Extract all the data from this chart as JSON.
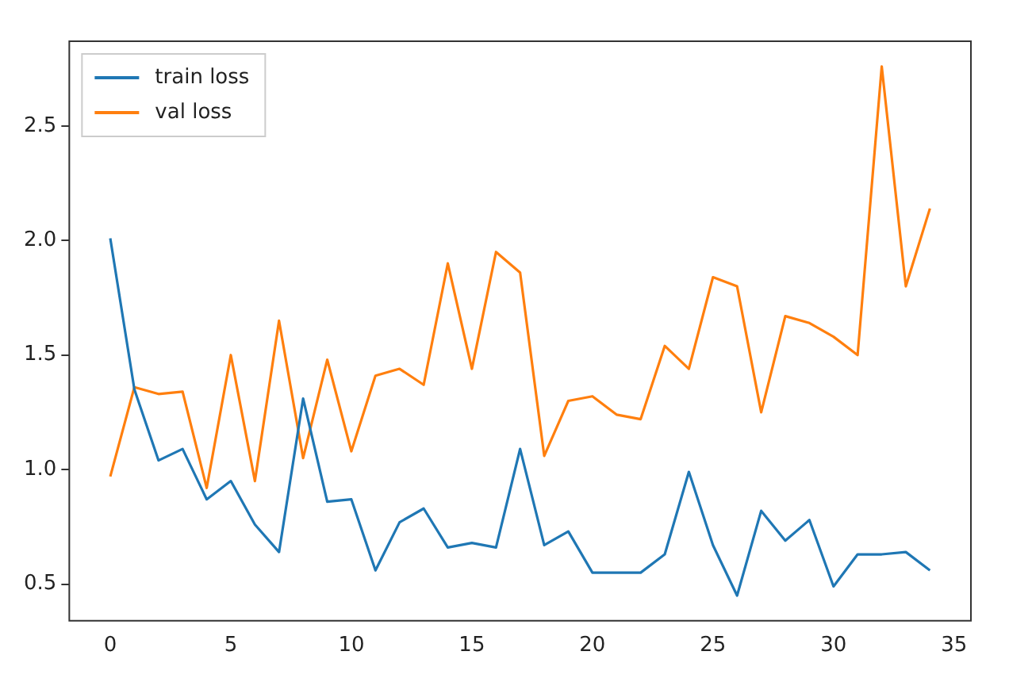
{
  "chart_data": {
    "type": "line",
    "x": [
      0,
      1,
      2,
      3,
      4,
      5,
      6,
      7,
      8,
      9,
      10,
      11,
      12,
      13,
      14,
      15,
      16,
      17,
      18,
      19,
      20,
      21,
      22,
      23,
      24,
      25,
      26,
      27,
      28,
      29,
      30,
      31,
      32,
      33,
      34
    ],
    "series": [
      {
        "name": "train loss",
        "color": "#1f77b4",
        "values": [
          2.01,
          1.35,
          1.04,
          1.09,
          0.87,
          0.95,
          0.76,
          0.64,
          1.31,
          0.86,
          0.87,
          0.56,
          0.77,
          0.83,
          0.66,
          0.68,
          0.66,
          1.09,
          0.67,
          0.73,
          0.55,
          0.55,
          0.55,
          0.63,
          0.99,
          0.67,
          0.45,
          0.82,
          0.69,
          0.78,
          0.49,
          0.63,
          0.63,
          0.64,
          0.56
        ]
      },
      {
        "name": "val loss",
        "color": "#ff7f0e",
        "values": [
          0.97,
          1.36,
          1.33,
          1.34,
          0.92,
          1.5,
          0.95,
          1.65,
          1.05,
          1.48,
          1.08,
          1.41,
          1.44,
          1.37,
          1.9,
          1.44,
          1.95,
          1.86,
          1.06,
          1.3,
          1.32,
          1.24,
          1.22,
          1.54,
          1.44,
          1.84,
          1.8,
          1.25,
          1.67,
          1.64,
          1.58,
          1.5,
          2.76,
          1.8,
          2.14
        ]
      }
    ],
    "xlim": [
      -1.7,
      35.7
    ],
    "xticks": [
      0,
      5,
      10,
      15,
      20,
      25,
      30,
      35
    ],
    "ylim": [
      0.34,
      2.87
    ],
    "yticks": [
      0.5,
      {
        "value": 1,
        "label": "1.0"
      },
      1.5,
      {
        "value": 2,
        "label": "2.0"
      },
      2.5
    ],
    "legend": "top left",
    "grid": false,
    "marker": "none",
    "line_style": "solid"
  }
}
